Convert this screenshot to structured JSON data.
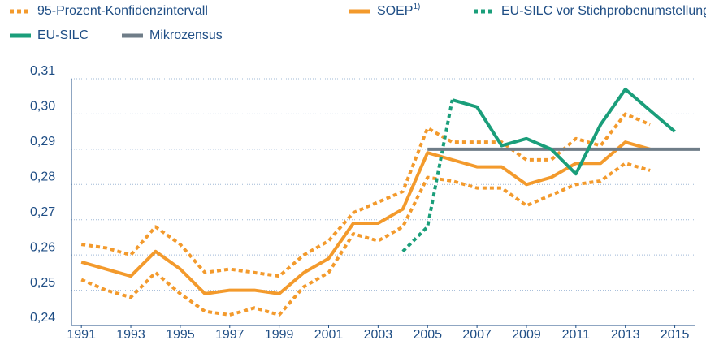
{
  "chart_data": {
    "type": "line",
    "x": [
      1991,
      1992,
      1993,
      1994,
      1995,
      1996,
      1997,
      1998,
      1999,
      2000,
      2001,
      2002,
      2003,
      2004,
      2005,
      2006,
      2007,
      2008,
      2009,
      2010,
      2011,
      2012,
      2013,
      2014,
      2015,
      2016
    ],
    "xlim": [
      1990.6,
      2016
    ],
    "xticks": [
      1991,
      1993,
      1995,
      1997,
      1999,
      2001,
      2003,
      2005,
      2007,
      2009,
      2011,
      2013,
      2015
    ],
    "ylim": [
      0.24,
      0.31
    ],
    "yticks": [
      {
        "value": 0.24,
        "label": "0,24"
      },
      {
        "value": 0.25,
        "label": "0,25"
      },
      {
        "value": 0.26,
        "label": "0,26"
      },
      {
        "value": 0.27,
        "label": "0,27"
      },
      {
        "value": 0.28,
        "label": "0,28"
      },
      {
        "value": 0.29,
        "label": "0,29"
      },
      {
        "value": 0.3,
        "label": "0,30"
      },
      {
        "value": 0.31,
        "label": "0,31"
      }
    ],
    "grid": true,
    "series": [
      {
        "name": "95-Prozent-Konfidenzintervall",
        "color": "#f39a2c",
        "style": "dotted",
        "upper": [
          0.263,
          0.262,
          0.26,
          0.268,
          0.263,
          0.255,
          0.256,
          0.255,
          0.254,
          0.26,
          0.264,
          0.272,
          0.275,
          0.278,
          0.296,
          0.292,
          0.292,
          0.292,
          0.287,
          0.287,
          0.293,
          0.291,
          0.3,
          0.297,
          null,
          null
        ],
        "lower": [
          0.253,
          0.25,
          0.248,
          0.255,
          0.249,
          0.244,
          0.243,
          0.245,
          0.243,
          0.251,
          0.255,
          0.266,
          0.264,
          0.268,
          0.282,
          0.281,
          0.279,
          0.279,
          0.274,
          0.277,
          0.28,
          0.281,
          0.286,
          0.284,
          null,
          null
        ]
      },
      {
        "name": "SOEP",
        "footnote": "1)",
        "color": "#f39a2c",
        "style": "solid",
        "values": [
          0.258,
          0.256,
          0.254,
          0.261,
          0.256,
          0.249,
          0.25,
          0.25,
          0.249,
          0.255,
          0.259,
          0.269,
          0.269,
          0.273,
          0.289,
          0.287,
          0.285,
          0.285,
          0.28,
          0.282,
          0.286,
          0.286,
          0.292,
          0.29,
          null,
          null
        ]
      },
      {
        "name": "EU-SILC vor Stichprobenumstellung",
        "color": "#1a9e7a",
        "style": "dotted",
        "values": [
          null,
          null,
          null,
          null,
          null,
          null,
          null,
          null,
          null,
          null,
          null,
          null,
          null,
          0.261,
          0.268,
          0.304,
          null,
          null,
          null,
          null,
          null,
          null,
          null,
          null,
          null,
          null
        ]
      },
      {
        "name": "Mikrozensus",
        "color": "#6f7d88",
        "style": "solid",
        "values": [
          null,
          null,
          null,
          null,
          null,
          null,
          null,
          null,
          null,
          null,
          null,
          null,
          null,
          null,
          0.29,
          0.29,
          0.29,
          0.29,
          0.29,
          0.29,
          0.29,
          0.29,
          0.29,
          0.29,
          0.29,
          0.29
        ]
      },
      {
        "name": "EU-SILC",
        "color": "#1a9e7a",
        "style": "solid",
        "values": [
          null,
          null,
          null,
          null,
          null,
          null,
          null,
          null,
          null,
          null,
          null,
          null,
          null,
          null,
          null,
          0.304,
          0.302,
          0.291,
          0.293,
          0.29,
          0.283,
          0.297,
          0.307,
          0.301,
          0.295,
          null
        ]
      }
    ]
  }
}
